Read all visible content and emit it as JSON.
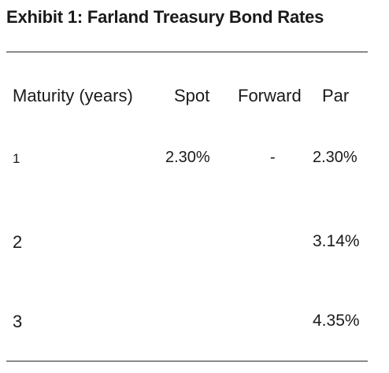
{
  "title": "Exhibit 1: Farland Treasury Bond Rates",
  "table": {
    "headers": {
      "maturity": "Maturity (years)",
      "spot": "Spot",
      "forward": "Forward",
      "par": "Par"
    },
    "rows": [
      {
        "maturity": "1",
        "spot": "2.30%",
        "forward": "-",
        "par": "2.30%"
      },
      {
        "maturity": "2",
        "spot": "",
        "forward": "",
        "par": "3.14%"
      },
      {
        "maturity": "3",
        "spot": "",
        "forward": "",
        "par": "4.35%"
      }
    ]
  }
}
